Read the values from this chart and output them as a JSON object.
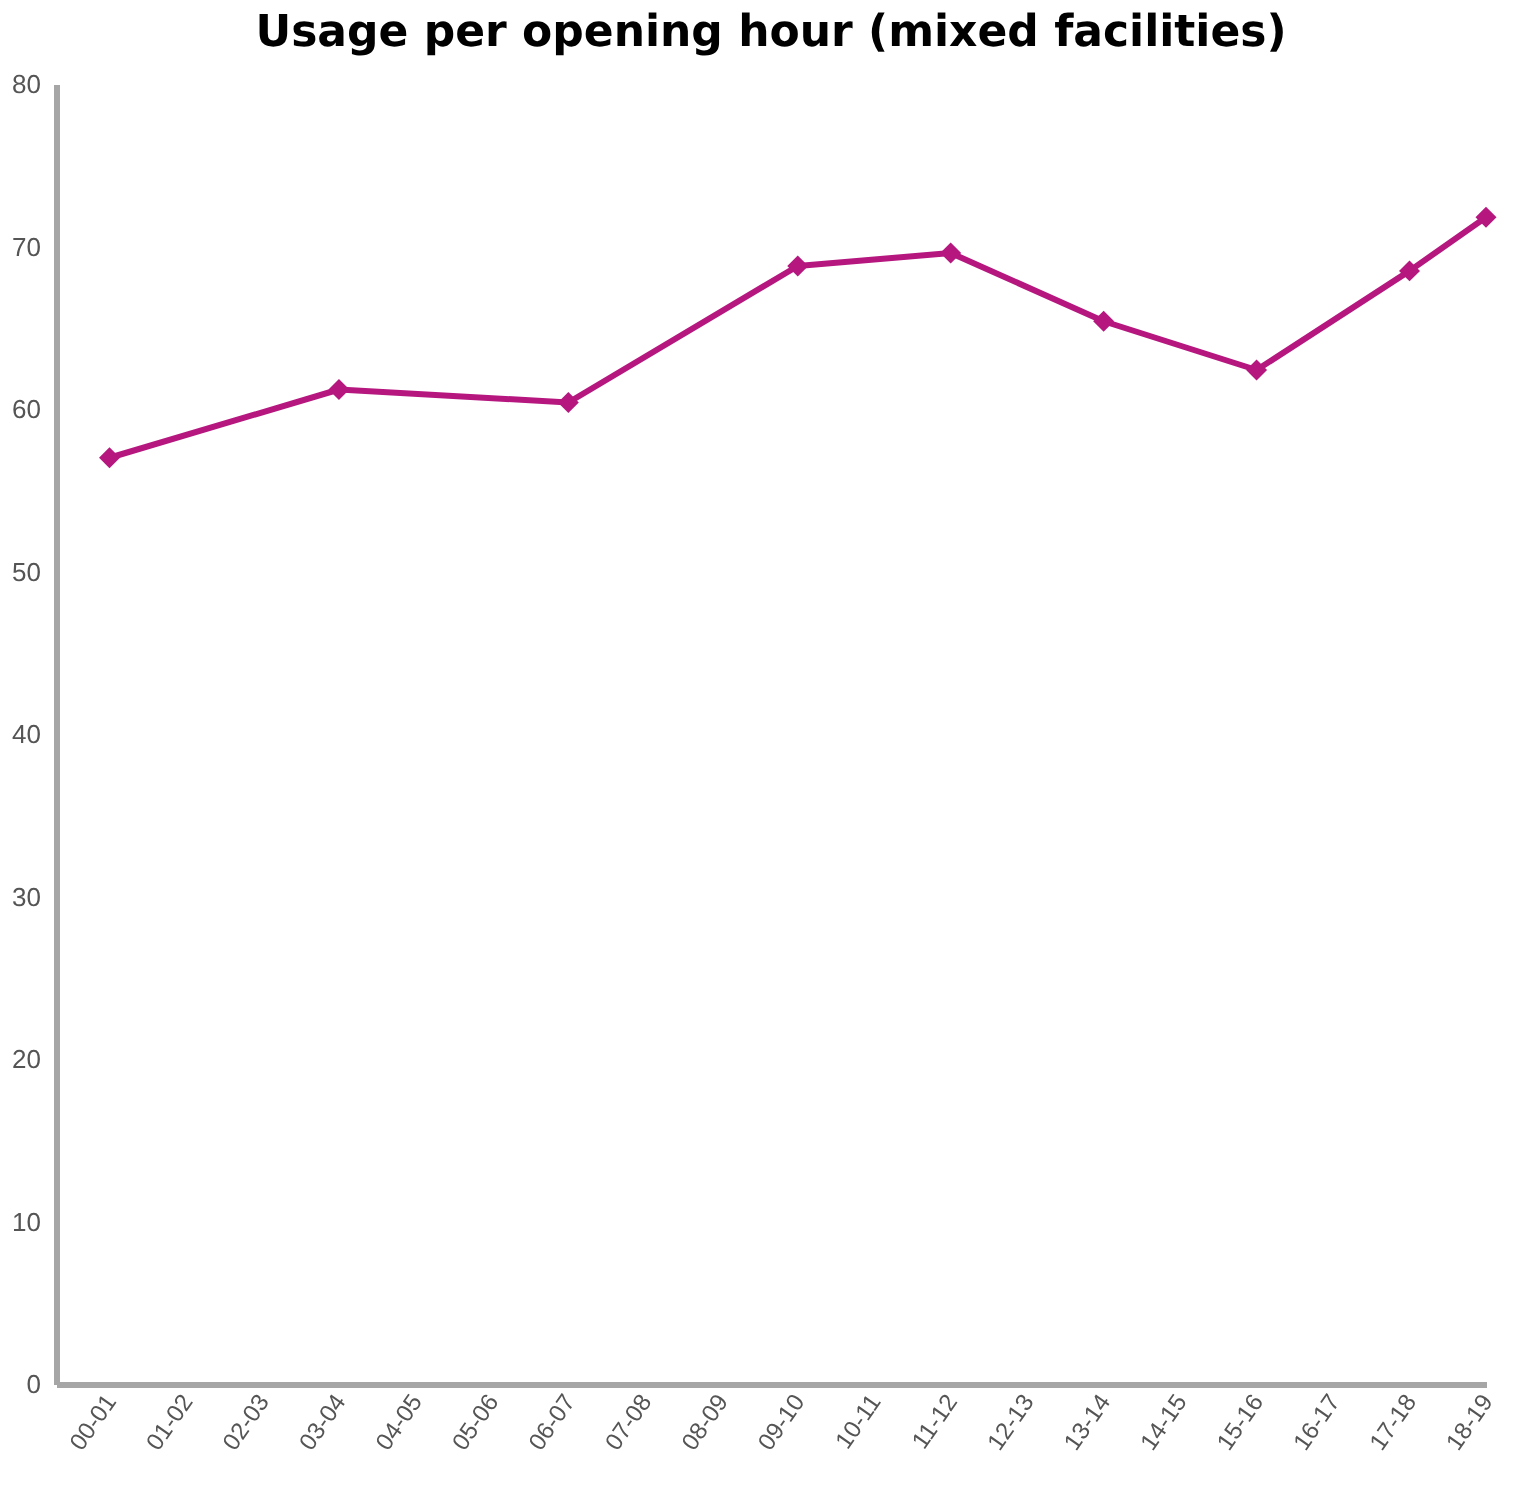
{
  "chart_data": {
    "type": "line",
    "title": "Usage per opening hour (mixed facilities)",
    "categories": [
      "00-01",
      "01-02",
      "02-03",
      "03-04",
      "04-05",
      "05-06",
      "06-07",
      "07-08",
      "08-09",
      "09-10",
      "10-11",
      "11-12",
      "12-13",
      "13-14",
      "14-15",
      "15-16",
      "16-17",
      "17-18",
      "18-19"
    ],
    "series": [
      {
        "color": "#b5177f",
        "values": [
          57.0,
          null,
          null,
          61.2,
          null,
          null,
          60.4,
          null,
          null,
          68.8,
          null,
          69.6,
          null,
          65.4,
          null,
          62.4,
          null,
          68.5,
          71.8
        ]
      }
    ],
    "ylim": [
      0,
      80
    ],
    "yticks": [
      0,
      10,
      20,
      30,
      40,
      50,
      60,
      70,
      80
    ],
    "grid": false,
    "legend": false,
    "marker": "diamond",
    "line_style": "solid"
  }
}
